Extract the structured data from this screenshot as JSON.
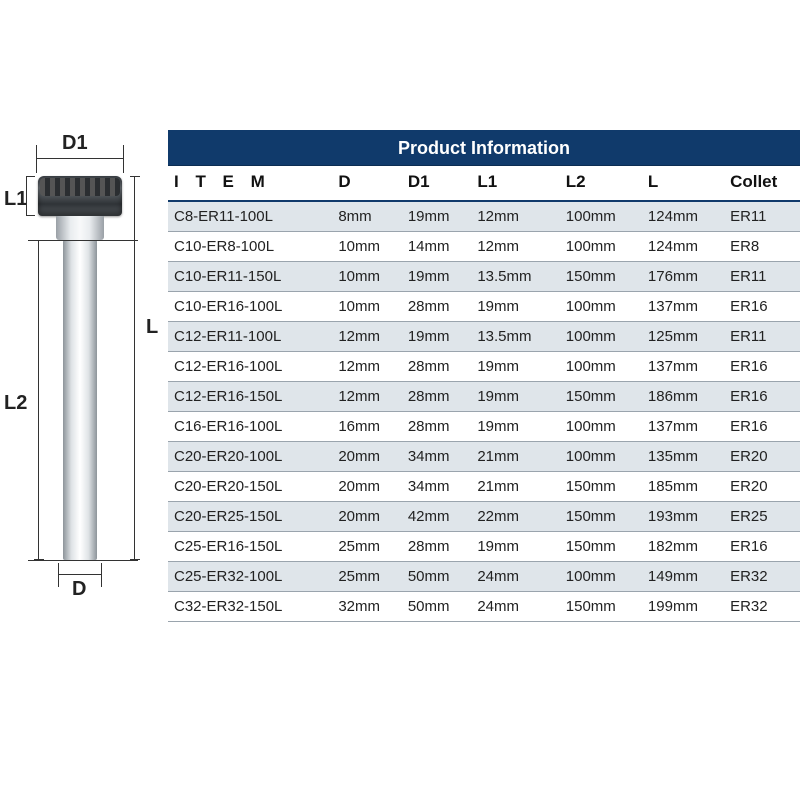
{
  "diagram": {
    "labels": {
      "D1": "D1",
      "D": "D",
      "L1": "L1",
      "L2": "L2",
      "L": "L"
    }
  },
  "table": {
    "title": "Product Information",
    "title_bg": "#103a6b",
    "title_color": "#ffffff",
    "row_alt_bg": "#dfe5ea",
    "border_color": "#9aa4ad",
    "header_underline": "#103a6b",
    "columns": [
      "I T E M",
      "D",
      "D1",
      "L1",
      "L2",
      "L",
      "Collet"
    ],
    "rows": [
      [
        "C8-ER11-100L",
        "8mm",
        "19mm",
        "12mm",
        "100mm",
        "124mm",
        "ER11"
      ],
      [
        "C10-ER8-100L",
        "10mm",
        "14mm",
        "12mm",
        "100mm",
        "124mm",
        "ER8"
      ],
      [
        "C10-ER11-150L",
        "10mm",
        "19mm",
        "13.5mm",
        "150mm",
        "176mm",
        "ER11"
      ],
      [
        "C10-ER16-100L",
        "10mm",
        "28mm",
        "19mm",
        "100mm",
        "137mm",
        "ER16"
      ],
      [
        "C12-ER11-100L",
        "12mm",
        "19mm",
        "13.5mm",
        "100mm",
        "125mm",
        "ER11"
      ],
      [
        "C12-ER16-100L",
        "12mm",
        "28mm",
        "19mm",
        "100mm",
        "137mm",
        "ER16"
      ],
      [
        "C12-ER16-150L",
        "12mm",
        "28mm",
        "19mm",
        "150mm",
        "186mm",
        "ER16"
      ],
      [
        "C16-ER16-100L",
        "16mm",
        "28mm",
        "19mm",
        "100mm",
        "137mm",
        "ER16"
      ],
      [
        "C20-ER20-100L",
        "20mm",
        "34mm",
        "21mm",
        "100mm",
        "135mm",
        "ER20"
      ],
      [
        "C20-ER20-150L",
        "20mm",
        "34mm",
        "21mm",
        "150mm",
        "185mm",
        "ER20"
      ],
      [
        "C20-ER25-150L",
        "20mm",
        "42mm",
        "22mm",
        "150mm",
        "193mm",
        "ER25"
      ],
      [
        "C25-ER16-150L",
        "25mm",
        "28mm",
        "19mm",
        "150mm",
        "182mm",
        "ER16"
      ],
      [
        "C25-ER32-100L",
        "25mm",
        "50mm",
        "24mm",
        "100mm",
        "149mm",
        "ER32"
      ],
      [
        "C32-ER32-150L",
        "32mm",
        "50mm",
        "24mm",
        "150mm",
        "199mm",
        "ER32"
      ]
    ]
  }
}
